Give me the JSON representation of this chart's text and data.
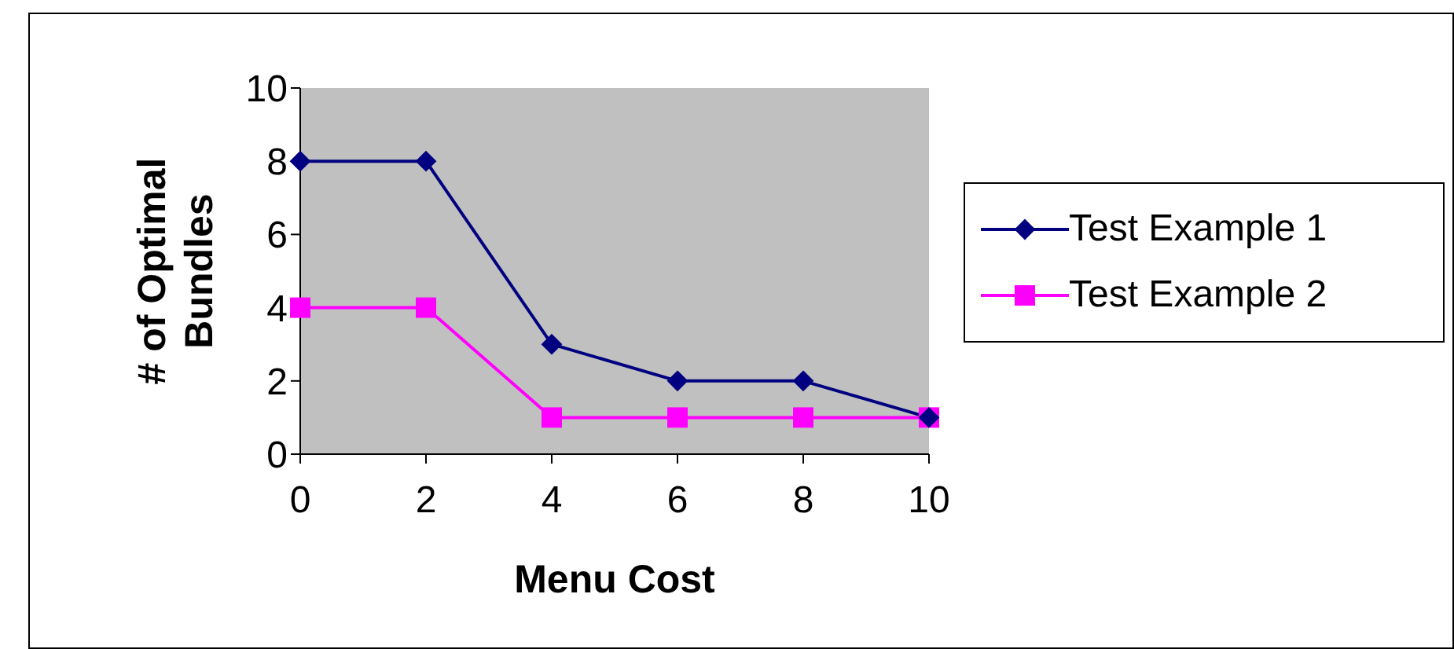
{
  "chart_data": {
    "type": "line",
    "xlabel": "Menu Cost",
    "ylabel": "# of Optimal Bundles",
    "categories": [
      "0",
      "2",
      "4",
      "6",
      "8",
      "10"
    ],
    "series": [
      {
        "name": "Test Example 1",
        "color": "#000080",
        "marker": "diamond",
        "values": [
          8,
          8,
          3,
          2,
          2,
          1
        ]
      },
      {
        "name": "Test Example 2",
        "color": "#ff00ff",
        "marker": "square",
        "values": [
          4,
          4,
          1,
          1,
          1,
          1
        ]
      }
    ],
    "ylim": [
      0,
      10
    ],
    "yticks": [
      0,
      2,
      4,
      6,
      8,
      10
    ],
    "legend": "right"
  }
}
